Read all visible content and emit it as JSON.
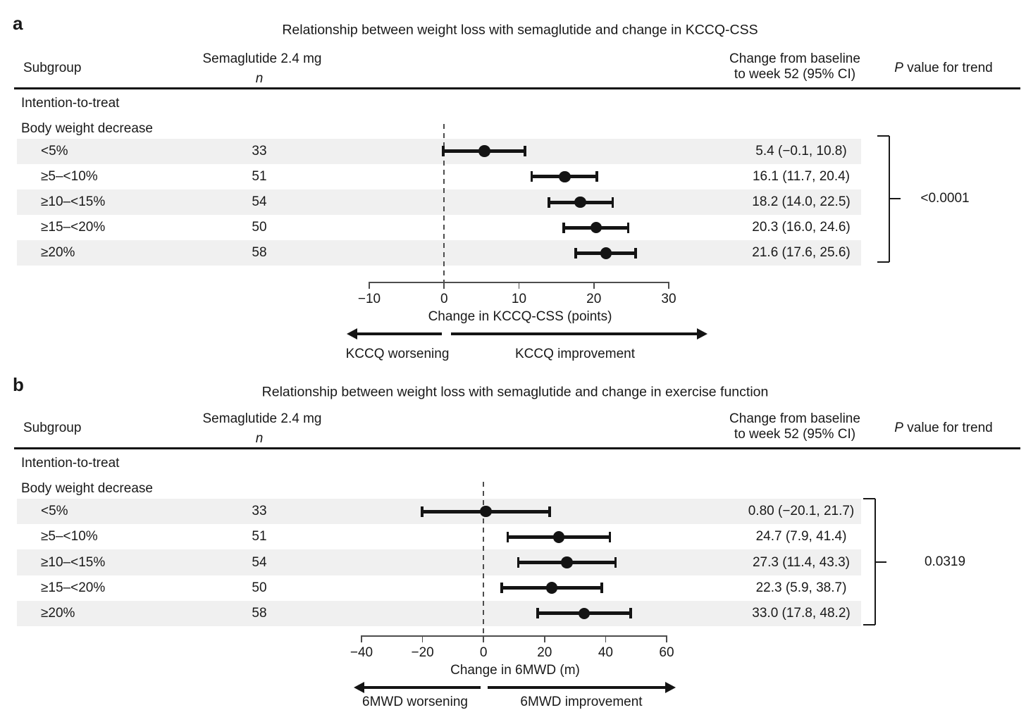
{
  "figure": {
    "panel_labels": [
      "a",
      "b"
    ],
    "column_headers": {
      "subgroup": "Subgroup",
      "treatment_line1": "Semaglutide 2.4 mg",
      "treatment_line2": "n",
      "change_line1": "Change from baseline",
      "change_line2": "to week 52 (95% CI)",
      "p_prefix": "P",
      "p_suffix": "value for trend"
    },
    "colors": {
      "stripe": "#f0f0f0",
      "marker": "#141414",
      "axis": "#4d4d4d",
      "text": "#191919"
    }
  },
  "chart_data": [
    {
      "type": "forest",
      "panel": "a",
      "title": "Relationship between weight loss with semaglutide and change in KCCQ-CSS",
      "section_label": "Intention-to-treat",
      "group_label": "Body weight decrease",
      "subgroups": [
        "<5%",
        "≥5–<10%",
        "≥10–<15%",
        "≥15–<20%",
        "≥20%"
      ],
      "n": [
        33,
        51,
        54,
        50,
        58
      ],
      "estimates": [
        5.4,
        16.1,
        18.2,
        20.3,
        21.6
      ],
      "ci_low": [
        -0.1,
        11.7,
        14.0,
        16.0,
        17.6
      ],
      "ci_high": [
        10.8,
        20.4,
        22.5,
        24.6,
        25.6
      ],
      "estimate_labels": [
        "5.4 (−0.1, 10.8)",
        "16.1 (11.7, 20.4)",
        "18.2 (14.0, 22.5)",
        "20.3 (16.0, 24.6)",
        "21.6 (17.6, 25.6)"
      ],
      "p_value_for_trend": "<0.0001",
      "xlim": [
        -10,
        30
      ],
      "x_ticks": [
        -10,
        0,
        10,
        20,
        30
      ],
      "xlabel": "Change in KCCQ-CSS (points)",
      "reference_line": 0,
      "arrow_left_label": "KCCQ worsening",
      "arrow_right_label": "KCCQ improvement"
    },
    {
      "type": "forest",
      "panel": "b",
      "title": "Relationship between weight loss with semaglutide and change in exercise function",
      "section_label": "Intention-to-treat",
      "group_label": "Body weight decrease",
      "subgroups": [
        "<5%",
        "≥5–<10%",
        "≥10–<15%",
        "≥15–<20%",
        "≥20%"
      ],
      "n": [
        33,
        51,
        54,
        50,
        58
      ],
      "estimates": [
        0.8,
        24.7,
        27.3,
        22.3,
        33.0
      ],
      "ci_low": [
        -20.1,
        7.9,
        11.4,
        5.9,
        17.8
      ],
      "ci_high": [
        21.7,
        41.4,
        43.3,
        38.7,
        48.2
      ],
      "estimate_labels": [
        "0.80 (−20.1, 21.7)",
        "24.7 (7.9, 41.4)",
        "27.3 (11.4, 43.3)",
        "22.3 (5.9, 38.7)",
        "33.0 (17.8, 48.2)"
      ],
      "p_value_for_trend": "0.0319",
      "xlim": [
        -40,
        60
      ],
      "x_ticks": [
        -40,
        -20,
        0,
        20,
        40,
        60
      ],
      "xlabel": "Change in 6MWD (m)",
      "reference_line": 0,
      "arrow_left_label": "6MWD worsening",
      "arrow_right_label": "6MWD improvement"
    }
  ]
}
